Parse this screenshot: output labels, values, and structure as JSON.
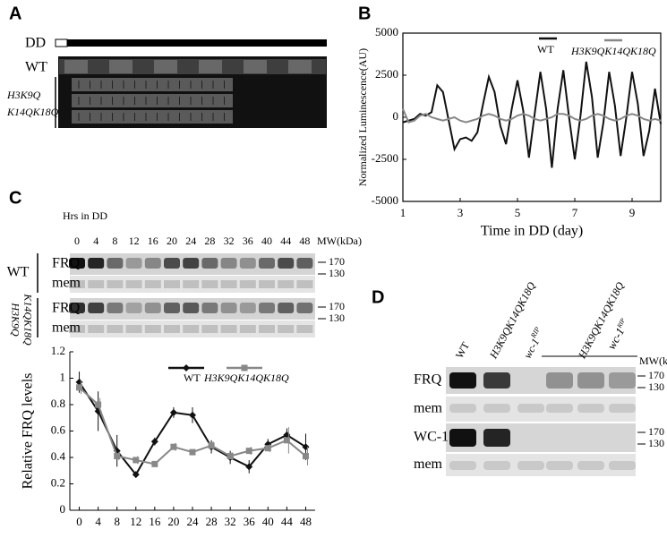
{
  "panel_labels": [
    "A",
    "B",
    "C",
    "D"
  ],
  "panel_a": {
    "dd_label": "DD",
    "rows": [
      "WT",
      [
        "H3K9Q",
        "K14QK18Q"
      ]
    ]
  },
  "panel_c_blot": {
    "header": "Hrs in DD",
    "timepoints": [
      "0",
      "4",
      "8",
      "12",
      "16",
      "20",
      "24",
      "28",
      "32",
      "36",
      "40",
      "44",
      "48"
    ],
    "mw_label": "MW(kDa)",
    "strains": [
      "WT",
      [
        "H3K9Q",
        "K14QK18Q"
      ]
    ],
    "rows": [
      "FRQ",
      "mem"
    ],
    "markers": [
      "170",
      "130"
    ]
  },
  "panel_d": {
    "lanes": [
      {
        "name": "WT"
      },
      {
        "name": "H3K9QK14QK18Q"
      },
      {
        "name": "wc-1",
        "sup": "RIP"
      }
    ],
    "group": {
      "name": "H3K9QK14QK18Q",
      "sub": "wc-1",
      "sup": "RIP"
    },
    "mw_label": "MW(kDa)",
    "rows": [
      "FRQ",
      "mem",
      "WC-1",
      "mem"
    ],
    "markers": [
      "170",
      "130"
    ]
  },
  "chart_data": [
    {
      "type": "line",
      "x_label": "Time in DD (day)",
      "y_label": "Normalized Luminescence(AU)",
      "xlim": [
        1,
        10
      ],
      "xticks": [
        1,
        3,
        5,
        7,
        9
      ],
      "ylim": [
        -5000,
        5000
      ],
      "yticks": [
        -5000,
        -2500,
        0,
        2500,
        5000
      ],
      "legend": "top-right",
      "x": [
        1.0,
        1.2,
        1.4,
        1.6,
        1.8,
        2.0,
        2.2,
        2.4,
        2.6,
        2.8,
        3.0,
        3.2,
        3.4,
        3.6,
        3.8,
        4.0,
        4.2,
        4.4,
        4.6,
        4.8,
        5.0,
        5.2,
        5.4,
        5.6,
        5.8,
        6.0,
        6.2,
        6.4,
        6.6,
        6.8,
        7.0,
        7.2,
        7.4,
        7.6,
        7.8,
        8.0,
        8.2,
        8.4,
        8.6,
        8.8,
        9.0,
        9.2,
        9.4,
        9.6,
        9.8,
        10.0
      ],
      "series": [
        {
          "name": "WT",
          "color": "#111111",
          "values": [
            -300,
            -200,
            -100,
            200,
            100,
            300,
            1900,
            1500,
            -200,
            -1900,
            -1300,
            -1200,
            -1400,
            -900,
            800,
            2400,
            1500,
            -500,
            -1600,
            500,
            2200,
            400,
            -2400,
            200,
            2700,
            500,
            -3000,
            500,
            2800,
            0,
            -2500,
            100,
            3300,
            1200,
            -2400,
            -300,
            2700,
            700,
            -2300,
            0,
            2700,
            800,
            -2300,
            -800,
            1700,
            -400
          ]
        },
        {
          "name": "H3K9QK14QK18Q",
          "color": "#888888",
          "values": [
            500,
            -300,
            -200,
            100,
            200,
            0,
            -100,
            -200,
            -100,
            0,
            -200,
            -300,
            -200,
            -100,
            100,
            200,
            100,
            -100,
            -200,
            -100,
            100,
            200,
            100,
            -100,
            -200,
            -100,
            0,
            200,
            200,
            100,
            -100,
            -200,
            -100,
            100,
            200,
            100,
            -100,
            -200,
            -100,
            100,
            200,
            100,
            -100,
            -200,
            -100,
            -200
          ]
        }
      ]
    },
    {
      "type": "line",
      "y_label": "Relative FRQ levels",
      "xlim": [
        -2,
        50
      ],
      "xticks": [
        0,
        4,
        8,
        12,
        16,
        20,
        24,
        28,
        32,
        36,
        40,
        44,
        48
      ],
      "ylim": [
        0,
        1.2
      ],
      "yticks": [
        0,
        0.2,
        0.4,
        0.6,
        0.8,
        1,
        1.2
      ],
      "legend": "top-right",
      "x": [
        0,
        4,
        8,
        12,
        16,
        20,
        24,
        28,
        32,
        36,
        40,
        44,
        48
      ],
      "series": [
        {
          "name": "WT",
          "color": "#111111",
          "marker": "diamond",
          "values": [
            0.97,
            0.75,
            0.45,
            0.27,
            0.52,
            0.74,
            0.72,
            0.48,
            0.4,
            0.33,
            0.5,
            0.57,
            0.48
          ],
          "errors": [
            0.08,
            0.15,
            0.12,
            0.02,
            0.03,
            0.04,
            0.06,
            0.05,
            0.05,
            0.05,
            0.04,
            0.05,
            0.1
          ]
        },
        {
          "name": "H3K9QK14QK18Q",
          "color": "#888888",
          "marker": "square",
          "values": [
            0.93,
            0.8,
            0.41,
            0.38,
            0.35,
            0.48,
            0.44,
            0.49,
            0.41,
            0.45,
            0.47,
            0.53,
            0.41
          ],
          "errors": [
            0.05,
            0.05,
            0.03,
            0.03,
            0.02,
            0.03,
            0.02,
            0.03,
            0.03,
            0.03,
            0.03,
            0.1,
            0.07
          ]
        }
      ]
    }
  ]
}
